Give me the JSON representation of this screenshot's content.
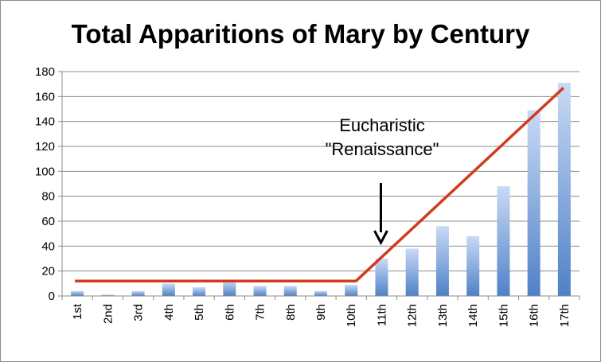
{
  "chart_data": {
    "type": "bar",
    "title": "Total Apparitions of Mary by Century",
    "xlabel": "",
    "ylabel": "",
    "categories": [
      "1st",
      "2nd",
      "3rd",
      "4th",
      "5th",
      "6th",
      "7th",
      "8th",
      "9th",
      "10th",
      "11th",
      "12th",
      "13th",
      "14th",
      "15th",
      "16th",
      "17th"
    ],
    "values": [
      4,
      1,
      4,
      10,
      7,
      12,
      8,
      8,
      4,
      9,
      30,
      38,
      56,
      48,
      88,
      149,
      171
    ],
    "ylim": [
      0,
      180
    ],
    "yticks": [
      "0",
      "20",
      "40",
      "60",
      "80",
      "100",
      "120",
      "140",
      "160",
      "180"
    ],
    "grid": true,
    "legend": "none",
    "trend_line": [
      {
        "x": "1st",
        "y": 12
      },
      {
        "x": "10th",
        "y": 12
      },
      {
        "x": "17th",
        "y": 167
      }
    ],
    "annotation": {
      "lines": [
        "Eucharistic",
        "\"Renaissance\""
      ],
      "points_to": "11th"
    },
    "colors": {
      "bar_top": "#c9daf5",
      "bar_bottom": "#4f81c7",
      "trend": "#d23c1e",
      "grid": "#8c8c8c"
    }
  }
}
